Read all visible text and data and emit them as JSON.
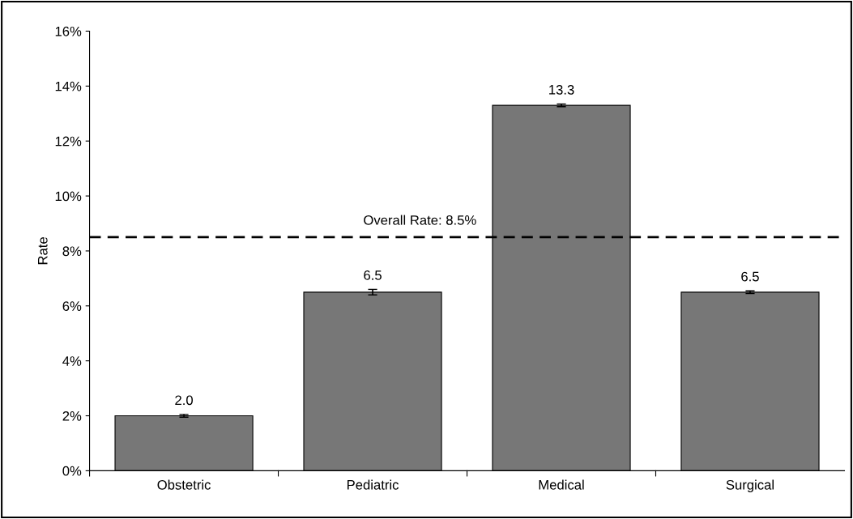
{
  "chart_data": {
    "type": "bar",
    "ylabel": "Rate",
    "categories": [
      "Obstetric",
      "Pediatric",
      "Medical",
      "Surgical"
    ],
    "values": [
      2.0,
      6.5,
      13.3,
      6.5
    ],
    "errors": [
      0.05,
      0.1,
      0.05,
      0.05
    ],
    "value_labels": [
      "2.0",
      "6.5",
      "13.3",
      "6.5"
    ],
    "color": "#777777",
    "ylim": [
      0,
      16
    ],
    "yticks": [
      {
        "value": 0,
        "label": "0%"
      },
      {
        "value": 2,
        "label": "2%"
      },
      {
        "value": 4,
        "label": "4%"
      },
      {
        "value": 6,
        "label": "6%"
      },
      {
        "value": 8,
        "label": "8%"
      },
      {
        "value": 10,
        "label": "10%"
      },
      {
        "value": 12,
        "label": "12%"
      },
      {
        "value": 14,
        "label": "14%"
      },
      {
        "value": 16,
        "label": "16%"
      }
    ],
    "ref_lines": [
      {
        "axis": "y",
        "value": 8.5,
        "label": "Overall Rate: 8.5%",
        "color": "#000000",
        "line_style": "dashed"
      }
    ],
    "grid": false,
    "legend": false
  }
}
